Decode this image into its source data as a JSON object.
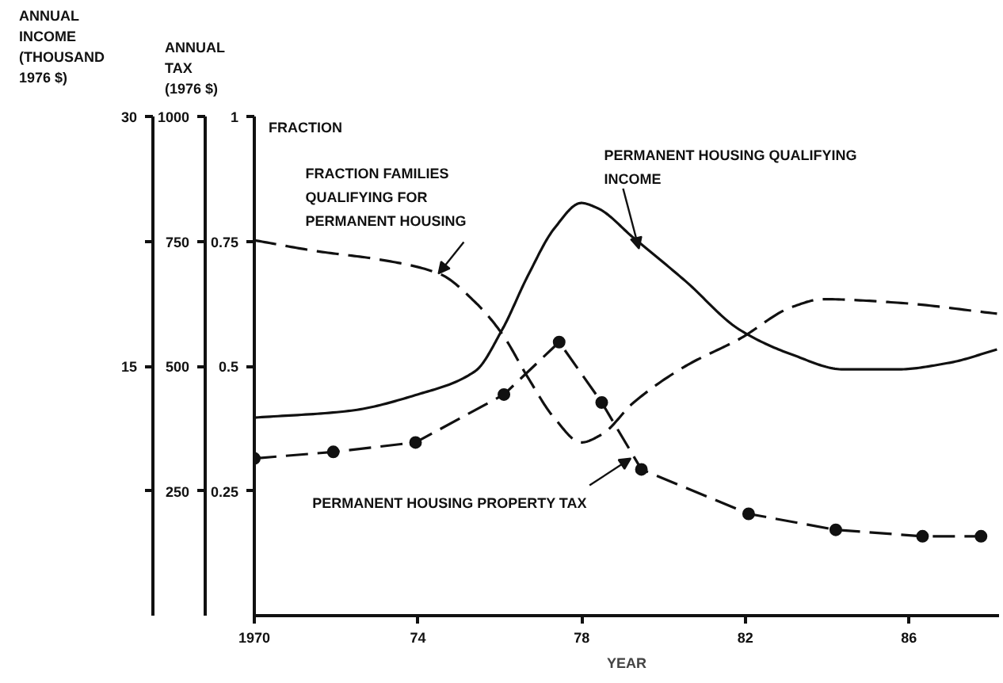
{
  "chart_data": {
    "type": "line",
    "xlabel": "YEAR",
    "ylabel": "FRACTION",
    "y2label": "ANNUAL\nTAX\n(1976 $)",
    "y3label": "ANNUAL\nINCOME\n(THOUSAND\n1976 $)",
    "xlim": [
      1970,
      1988.2
    ],
    "xticks": [
      {
        "value": 1970,
        "label": "1970"
      },
      {
        "value": 1974,
        "label": "74"
      },
      {
        "value": 1978,
        "label": "78"
      },
      {
        "value": 1982,
        "label": "82"
      },
      {
        "value": 1986,
        "label": "86"
      }
    ],
    "ylim": [
      0,
      1
    ],
    "yticks": [
      0.25,
      0.5,
      0.75,
      1
    ],
    "y2lim": [
      0,
      1000
    ],
    "y2ticks": [
      250,
      500,
      750,
      1000
    ],
    "y3lim": [
      0,
      30
    ],
    "y3ticks": [
      {
        "value": 7.5,
        "label": null
      },
      15,
      {
        "value": 22.5,
        "label": null
      },
      30
    ],
    "grid": false,
    "series": [
      {
        "color": "#111111",
        "axis": "y3",
        "line_style": "solid",
        "marker": "none",
        "x": [
          1970,
          1972.3,
          1974.0,
          1975.4,
          1976.06,
          1976.68,
          1977.34,
          1977.99,
          1978.38,
          1979.27,
          1980.54,
          1981.85,
          1983.13,
          1984.4,
          1985.71,
          1986.99,
          1988.15
        ],
        "values": [
          11.9,
          12.3,
          13.3,
          14.7,
          17.2,
          20.4,
          23.3,
          24.8,
          24.5,
          22.7,
          20.1,
          17.2,
          15.7,
          14.8,
          14.8,
          15.2,
          16.0
        ]
      },
      {
        "color": "#111111",
        "axis": "y",
        "line_style": "dashed",
        "marker": "none",
        "x": [
          1970,
          1971.54,
          1973.09,
          1974.52,
          1975.41,
          1976.06,
          1976.68,
          1977.34,
          1977.99,
          1978.49,
          1979.27,
          1980.54,
          1981.85,
          1983.13,
          1983.9,
          1985.71,
          1988.15
        ],
        "values": [
          0.752,
          0.73,
          0.713,
          0.685,
          0.627,
          0.564,
          0.478,
          0.395,
          0.347,
          0.363,
          0.427,
          0.5,
          0.554,
          0.618,
          0.634,
          0.627,
          0.605
        ]
      },
      {
        "color": "#111111",
        "axis": "y2",
        "line_style": "dashed",
        "marker": "circle",
        "x": [
          1970,
          1971.93,
          1973.94,
          1976.1,
          1977.45,
          1978.49,
          1979.46,
          1982.08,
          1984.21,
          1986.33,
          1987.76
        ],
        "values": [
          315,
          328,
          347,
          443,
          548,
          427,
          293,
          204,
          172,
          159,
          159
        ]
      }
    ],
    "annotations": [
      {
        "text": "FRACTION FAMILIES\nQUALIFYING FOR\nPERMANENT HOUSING",
        "x": 1974.5,
        "y": 0.685
      },
      {
        "text": "PERMANENT HOUSING QUALIFYING\nINCOME",
        "x": 1979.4,
        "y": 0.735
      },
      {
        "text": "PERMANENT HOUSING PROPERTY TAX",
        "x": 1979.2,
        "y": 0.315
      }
    ]
  }
}
